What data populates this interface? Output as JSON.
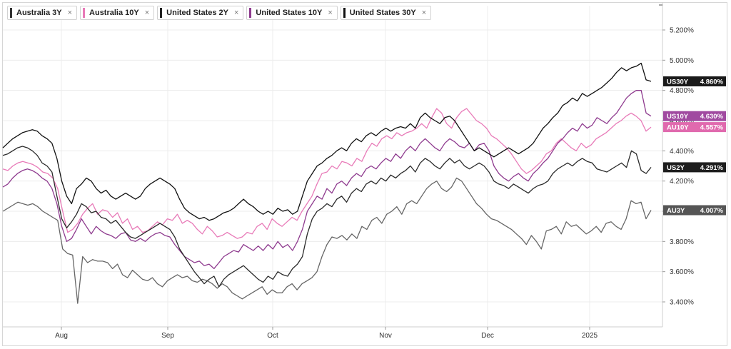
{
  "legend": [
    {
      "label": "Australia 3Y",
      "color": "#333333",
      "close": "×"
    },
    {
      "label": "Australia 10Y",
      "color": "#e87ab8",
      "close": "×"
    },
    {
      "label": "United States 2Y",
      "color": "#222222",
      "close": "×"
    },
    {
      "label": "United States 10Y",
      "color": "#8e3a8e",
      "close": "×"
    },
    {
      "label": "United States 30Y",
      "color": "#111111",
      "close": "×"
    }
  ],
  "chart_data": {
    "type": "line",
    "ylim": [
      3.3,
      5.35
    ],
    "y_ticks": [
      "3.400%",
      "3.600%",
      "3.800%",
      "4.000%",
      "4.200%",
      "4.400%",
      "4.600%",
      "4.800%",
      "5.000%",
      "5.200%"
    ],
    "x_ticks": [
      "Aug",
      "Sep",
      "Oct",
      "Nov",
      "Dec",
      "2025"
    ],
    "grid": true,
    "legend_position": "top-left",
    "series": [
      {
        "name": "Australia 3Y",
        "tag": "AU3Y",
        "last_label": "4.007%",
        "color": "#666666",
        "tag_color": "#555555",
        "values": [
          4.0,
          4.02,
          4.04,
          4.06,
          4.05,
          4.04,
          4.05,
          4.03,
          4.0,
          3.98,
          3.96,
          3.94,
          3.75,
          3.72,
          3.71,
          3.39,
          3.7,
          3.66,
          3.68,
          3.67,
          3.67,
          3.66,
          3.62,
          3.65,
          3.58,
          3.56,
          3.61,
          3.58,
          3.55,
          3.54,
          3.56,
          3.52,
          3.5,
          3.54,
          3.56,
          3.58,
          3.56,
          3.57,
          3.54,
          3.53,
          3.55,
          3.54,
          3.52,
          3.49,
          3.52,
          3.5,
          3.46,
          3.44,
          3.42,
          3.44,
          3.46,
          3.48,
          3.5,
          3.45,
          3.48,
          3.46,
          3.46,
          3.5,
          3.52,
          3.48,
          3.52,
          3.54,
          3.56,
          3.6,
          3.7,
          3.78,
          3.83,
          3.82,
          3.84,
          3.81,
          3.85,
          3.82,
          3.9,
          3.88,
          3.94,
          3.96,
          3.92,
          3.98,
          4.0,
          4.03,
          3.98,
          4.05,
          4.07,
          4.05,
          4.1,
          4.15,
          4.18,
          4.2,
          4.15,
          4.13,
          4.16,
          4.22,
          4.2,
          4.15,
          4.1,
          4.05,
          4.02,
          3.98,
          3.95,
          3.94,
          3.92,
          3.9,
          3.88,
          3.85,
          3.82,
          3.78,
          3.84,
          3.8,
          3.75,
          3.87,
          3.88,
          3.9,
          3.85,
          3.93,
          3.9,
          3.91,
          3.88,
          3.85,
          3.87,
          3.9,
          3.86,
          3.92,
          3.93,
          3.9,
          3.88,
          3.95,
          4.07,
          4.05,
          4.06,
          3.95,
          4.007
        ]
      },
      {
        "name": "Australia 10Y",
        "tag": "AU10Y",
        "last_label": "4.557%",
        "color": "#e87ab8",
        "tag_color": "#e06aae",
        "values": [
          4.28,
          4.27,
          4.3,
          4.32,
          4.33,
          4.32,
          4.31,
          4.29,
          4.26,
          4.25,
          4.22,
          4.15,
          4.0,
          3.86,
          3.88,
          3.92,
          3.98,
          4.02,
          4.05,
          3.98,
          4.01,
          4.0,
          3.96,
          3.99,
          3.92,
          3.95,
          3.88,
          3.9,
          3.86,
          3.87,
          3.9,
          3.93,
          3.91,
          3.95,
          3.94,
          3.98,
          3.92,
          3.94,
          3.92,
          3.88,
          3.85,
          3.9,
          3.87,
          3.83,
          3.84,
          3.86,
          3.84,
          3.82,
          3.83,
          3.86,
          3.85,
          3.9,
          3.92,
          3.88,
          3.95,
          3.92,
          3.9,
          3.93,
          3.96,
          3.94,
          4.0,
          4.05,
          4.1,
          4.18,
          4.25,
          4.26,
          4.3,
          4.28,
          4.33,
          4.32,
          4.3,
          4.35,
          4.33,
          4.4,
          4.45,
          4.43,
          4.48,
          4.5,
          4.48,
          4.52,
          4.5,
          4.52,
          4.53,
          4.55,
          4.58,
          4.55,
          4.62,
          4.68,
          4.65,
          4.58,
          4.55,
          4.62,
          4.66,
          4.68,
          4.64,
          4.6,
          4.58,
          4.55,
          4.5,
          4.48,
          4.45,
          4.42,
          4.38,
          4.33,
          4.28,
          4.25,
          4.27,
          4.3,
          4.33,
          4.38,
          4.4,
          4.45,
          4.48,
          4.45,
          4.42,
          4.4,
          4.45,
          4.42,
          4.44,
          4.48,
          4.5,
          4.52,
          4.55,
          4.58,
          4.6,
          4.63,
          4.65,
          4.63,
          4.6,
          4.53,
          4.557
        ]
      },
      {
        "name": "United States 2Y",
        "tag": "US2Y",
        "last_label": "4.291%",
        "color": "#2a2a2a",
        "tag_color": "#1e1e1e",
        "values": [
          4.37,
          4.38,
          4.4,
          4.42,
          4.43,
          4.42,
          4.4,
          4.37,
          4.32,
          4.3,
          4.26,
          4.1,
          3.95,
          3.89,
          3.93,
          3.98,
          4.05,
          4.03,
          3.99,
          4.0,
          3.96,
          3.95,
          3.92,
          3.94,
          3.9,
          3.86,
          3.83,
          3.82,
          3.84,
          3.86,
          3.88,
          3.9,
          3.92,
          3.9,
          3.88,
          3.83,
          3.75,
          3.7,
          3.65,
          3.6,
          3.56,
          3.52,
          3.55,
          3.57,
          3.5,
          3.55,
          3.58,
          3.6,
          3.62,
          3.64,
          3.61,
          3.58,
          3.55,
          3.53,
          3.57,
          3.55,
          3.6,
          3.58,
          3.57,
          3.62,
          3.65,
          3.7,
          3.85,
          3.95,
          4.0,
          4.02,
          4.05,
          4.03,
          4.08,
          4.1,
          4.06,
          4.12,
          4.15,
          4.13,
          4.18,
          4.2,
          4.18,
          4.22,
          4.2,
          4.24,
          4.22,
          4.25,
          4.27,
          4.3,
          4.26,
          4.32,
          4.35,
          4.33,
          4.3,
          4.28,
          4.32,
          4.35,
          4.32,
          4.34,
          4.3,
          4.28,
          4.3,
          4.32,
          4.3,
          4.26,
          4.2,
          4.18,
          4.17,
          4.15,
          4.18,
          4.16,
          4.14,
          4.12,
          4.15,
          4.17,
          4.18,
          4.2,
          4.25,
          4.28,
          4.3,
          4.32,
          4.3,
          4.33,
          4.35,
          4.33,
          4.32,
          4.28,
          4.27,
          4.26,
          4.28,
          4.3,
          4.32,
          4.29,
          4.4,
          4.38,
          4.27,
          4.25,
          4.291
        ]
      },
      {
        "name": "United States 10Y",
        "tag": "US10Y",
        "last_label": "4.630%",
        "color": "#8e3a8e",
        "tag_color": "#a04aa0",
        "values": [
          4.16,
          4.18,
          4.22,
          4.25,
          4.27,
          4.28,
          4.27,
          4.25,
          4.22,
          4.2,
          4.15,
          4.05,
          3.9,
          3.8,
          3.82,
          3.88,
          3.95,
          3.9,
          3.85,
          3.9,
          3.87,
          3.85,
          3.84,
          3.82,
          3.85,
          3.86,
          3.81,
          3.8,
          3.82,
          3.8,
          3.83,
          3.85,
          3.86,
          3.84,
          3.83,
          3.78,
          3.74,
          3.7,
          3.68,
          3.66,
          3.67,
          3.64,
          3.65,
          3.62,
          3.66,
          3.7,
          3.72,
          3.74,
          3.73,
          3.78,
          3.76,
          3.74,
          3.77,
          3.74,
          3.78,
          3.75,
          3.8,
          3.76,
          3.78,
          3.74,
          3.8,
          3.88,
          4.0,
          4.05,
          4.1,
          4.08,
          4.15,
          4.12,
          4.18,
          4.2,
          4.17,
          4.22,
          4.25,
          4.23,
          4.28,
          4.3,
          4.28,
          4.32,
          4.35,
          4.33,
          4.38,
          4.35,
          4.4,
          4.43,
          4.4,
          4.45,
          4.48,
          4.45,
          4.42,
          4.4,
          4.45,
          4.48,
          4.46,
          4.43,
          4.42,
          4.45,
          4.4,
          4.44,
          4.45,
          4.4,
          4.3,
          4.25,
          4.22,
          4.2,
          4.23,
          4.25,
          4.22,
          4.2,
          4.25,
          4.28,
          4.32,
          4.35,
          4.4,
          4.45,
          4.48,
          4.52,
          4.55,
          4.53,
          4.58,
          4.55,
          4.57,
          4.62,
          4.6,
          4.58,
          4.62,
          4.65,
          4.7,
          4.75,
          4.78,
          4.8,
          4.8,
          4.65,
          4.63
        ]
      },
      {
        "name": "United States 30Y",
        "tag": "US30Y",
        "last_label": "4.860%",
        "color": "#111111",
        "tag_color": "#1a1a1a",
        "values": [
          4.42,
          4.45,
          4.48,
          4.5,
          4.52,
          4.53,
          4.54,
          4.53,
          4.5,
          4.48,
          4.45,
          4.35,
          4.2,
          4.1,
          4.05,
          4.15,
          4.18,
          4.22,
          4.2,
          4.15,
          4.12,
          4.14,
          4.1,
          4.08,
          4.1,
          4.12,
          4.1,
          4.08,
          4.1,
          4.15,
          4.18,
          4.2,
          4.22,
          4.2,
          4.18,
          4.15,
          4.08,
          4.02,
          3.99,
          3.97,
          3.95,
          3.96,
          3.94,
          3.95,
          3.97,
          3.99,
          4.0,
          4.02,
          4.05,
          4.08,
          4.05,
          4.03,
          4.0,
          3.98,
          4.0,
          3.98,
          4.02,
          4.0,
          4.01,
          3.98,
          4.0,
          4.1,
          4.2,
          4.25,
          4.3,
          4.32,
          4.35,
          4.37,
          4.4,
          4.42,
          4.4,
          4.45,
          4.48,
          4.46,
          4.5,
          4.52,
          4.5,
          4.53,
          4.55,
          4.53,
          4.55,
          4.56,
          4.55,
          4.58,
          4.55,
          4.62,
          4.65,
          4.62,
          4.6,
          4.58,
          4.62,
          4.63,
          4.6,
          4.55,
          4.5,
          4.45,
          4.4,
          4.42,
          4.4,
          4.38,
          4.36,
          4.38,
          4.4,
          4.42,
          4.4,
          4.38,
          4.4,
          4.42,
          4.45,
          4.5,
          4.55,
          4.58,
          4.62,
          4.65,
          4.7,
          4.72,
          4.75,
          4.73,
          4.78,
          4.76,
          4.78,
          4.8,
          4.82,
          4.85,
          4.88,
          4.92,
          4.95,
          4.93,
          4.95,
          4.96,
          4.98,
          4.87,
          4.86
        ]
      }
    ]
  }
}
